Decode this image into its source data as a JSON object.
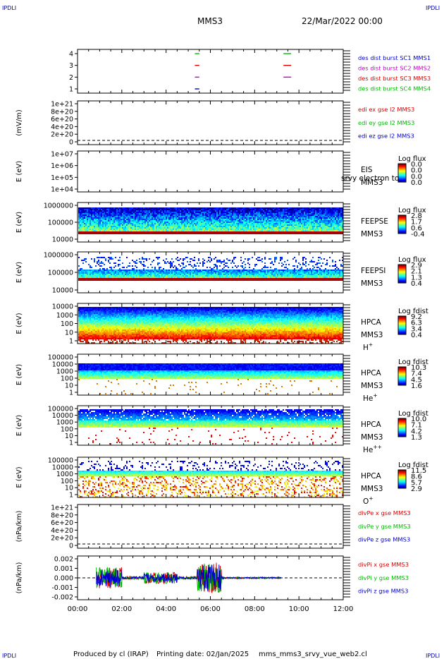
{
  "header": {
    "corner_tl": "IPDLI",
    "corner_tr": "IPDLI",
    "corner_bl": "IPDLI",
    "corner_br": "IPDLI",
    "spacecraft": "MMS3",
    "date": "22/Mar/2022 00:00"
  },
  "footer": {
    "produced": "Produced by cl (IRAP)",
    "printing": "Printing date: 02/Jan/2025",
    "file": "mms_mms3_srvy_vue_web2.cl"
  },
  "colors": {
    "mms1": "#0000cc",
    "mms2": "#cc00cc",
    "mms3": "#dd0000",
    "mms4": "#00bb00",
    "ex": "#dd0000",
    "ey": "#00bb00",
    "ez": "#0000cc"
  },
  "chart_data": {
    "type": "heatmap",
    "x_ticks": [
      "00:00",
      "02:00",
      "04:00",
      "06:00",
      "08:00",
      "10:00",
      "12:00"
    ],
    "x_range_hours": [
      0,
      12
    ],
    "panels": [
      {
        "id": "burst",
        "type": "scatter",
        "yticks": [
          "4",
          "3",
          "2",
          "1"
        ],
        "ylim": [
          0.5,
          4.5
        ],
        "legend": [
          {
            "label": "des dist burst SC1 MMS1",
            "color": "#0000cc"
          },
          {
            "label": "des dist burst SC2 MMS2",
            "color": "#cc00cc"
          },
          {
            "label": "des dist burst SC3 MMS3",
            "color": "#dd0000"
          },
          {
            "label": "des dist burst SC4 MMS4",
            "color": "#00bb00"
          }
        ],
        "segments": [
          {
            "y": 4,
            "t0": 5.3,
            "t1": 5.5,
            "color": "#00bb00"
          },
          {
            "y": 3,
            "t0": 5.3,
            "t1": 5.5,
            "color": "#dd0000"
          },
          {
            "y": 2,
            "t0": 5.3,
            "t1": 5.5,
            "color": "#cc00cc"
          },
          {
            "y": 1,
            "t0": 5.3,
            "t1": 5.5,
            "color": "#0000cc"
          },
          {
            "y": 4,
            "t0": 9.3,
            "t1": 9.65,
            "color": "#00bb00"
          },
          {
            "y": 3,
            "t0": 9.3,
            "t1": 9.65,
            "color": "#dd0000"
          },
          {
            "y": 2,
            "t0": 9.3,
            "t1": 9.65,
            "color": "#cc00cc"
          }
        ]
      },
      {
        "id": "edi",
        "type": "line",
        "ylabel": "(mV/m)",
        "yticks": [
          "1e+21",
          "8e+20",
          "6e+20",
          "4e+20",
          "2e+20",
          "0"
        ],
        "ylim": [
          0,
          1e+21
        ],
        "legend": [
          {
            "label": "edi ex gse l2 MMS3",
            "color": "#dd0000"
          },
          {
            "label": "edi ey gse l2 MMS3",
            "color": "#00bb00"
          },
          {
            "label": "edi ez gse l2 MMS3",
            "color": "#0000cc"
          }
        ]
      },
      {
        "id": "eis",
        "type": "heatmap",
        "ylabel": "E (eV)",
        "yticks": [
          "1e+07",
          "1e+06",
          "1e+05",
          "1e+04"
        ],
        "ylim": [
          10000.0,
          10000000.0
        ],
        "log": true,
        "inst": "EIS",
        "sc": "MMS3",
        "overlay": "srvy electron to",
        "cb_title": "Log flux",
        "cb_ticks": [
          "0.0",
          "0.0",
          "0.0",
          "0.0"
        ]
      },
      {
        "id": "feepse",
        "type": "heatmap",
        "ylabel": "E (eV)",
        "yticks": [
          "1000000",
          "100000",
          "10000"
        ],
        "ylim": [
          10000.0,
          1000000.0
        ],
        "log": true,
        "inst": "FEEPSE",
        "sc": "MMS3",
        "cb_title": "Log flux",
        "cb_ticks": [
          "2.8",
          "1.7",
          "0.6",
          "-0.4"
        ]
      },
      {
        "id": "feepsi",
        "type": "heatmap",
        "ylabel": "E (eV)",
        "yticks": [
          "1000000",
          "100000",
          "10000"
        ],
        "ylim": [
          10000.0,
          1000000.0
        ],
        "log": true,
        "inst": "FEEPSI",
        "sc": "MMS3",
        "cb_title": "Log flux",
        "cb_ticks": [
          "2.9",
          "2.1",
          "1.3",
          "0.4"
        ]
      },
      {
        "id": "hpca_h",
        "type": "heatmap",
        "ylabel": "E (eV)",
        "yticks": [
          "10000",
          "1000",
          "100",
          "10",
          "1"
        ],
        "ylim": [
          1,
          40000.0
        ],
        "log": true,
        "inst": "HPCA",
        "sc": "MMS3",
        "species": "H",
        "species_sup": "+",
        "cb_title": "Log fdist",
        "cb_ticks": [
          "9.2",
          "6.3",
          "3.4",
          "0.4"
        ]
      },
      {
        "id": "hpca_he",
        "type": "heatmap",
        "ylabel": "E (eV)",
        "yticks": [
          "100000",
          "10000",
          "1000",
          "100",
          "10",
          "1"
        ],
        "ylim": [
          1,
          100000.0
        ],
        "log": true,
        "inst": "HPCA",
        "sc": "MMS3",
        "species": "He",
        "species_sup": "+",
        "cb_title": "Log fdist",
        "cb_ticks": [
          "10.3",
          "7.4",
          "4.5",
          "1.6"
        ]
      },
      {
        "id": "hpca_hepp",
        "type": "heatmap",
        "ylabel": "E (eV)",
        "yticks": [
          "100000",
          "10000",
          "1000",
          "100",
          "10",
          "1"
        ],
        "ylim": [
          1,
          100000.0
        ],
        "log": true,
        "inst": "HPCA",
        "sc": "MMS3",
        "species": "He",
        "species_sup": "++",
        "cb_title": "Log fdist",
        "cb_ticks": [
          "10.0",
          "7.1",
          "4.2",
          "1.3"
        ]
      },
      {
        "id": "hpca_o",
        "type": "heatmap",
        "ylabel": "E (eV)",
        "yticks": [
          "100000",
          "10000",
          "1000",
          "100",
          "10",
          "1"
        ],
        "ylim": [
          1,
          100000.0
        ],
        "log": true,
        "inst": "HPCA",
        "sc": "MMS3",
        "species": "O",
        "species_sup": "+",
        "cb_title": "Log fdist",
        "cb_ticks": [
          "11.5",
          "8.6",
          "5.7",
          "2.9"
        ]
      },
      {
        "id": "divpe",
        "type": "line",
        "ylabel": "(nPa/km)",
        "yticks": [
          "1e+21",
          "8e+20",
          "6e+20",
          "4e+20",
          "2e+20",
          "0"
        ],
        "ylim": [
          0,
          1e+21
        ],
        "legend": [
          {
            "label": "divPe x gse MMS3",
            "color": "#dd0000"
          },
          {
            "label": "divPe y gse MMS3",
            "color": "#00bb00"
          },
          {
            "label": "divPe z gse MMS3",
            "color": "#0000cc"
          }
        ]
      },
      {
        "id": "divpi",
        "type": "line",
        "ylabel": "(nPa/km)",
        "yticks": [
          "0.002",
          "0.001",
          "0.000",
          "-0.001",
          "-0.002"
        ],
        "ylim": [
          -0.0025,
          0.0022
        ],
        "data_span_hours": [
          0.85,
          9.2
        ],
        "legend": [
          {
            "label": "divPi x gse MMS3",
            "color": "#dd0000"
          },
          {
            "label": "divPi y gse MMS3",
            "color": "#00bb00"
          },
          {
            "label": "divPi z gse MMS3",
            "color": "#0000cc"
          }
        ]
      }
    ]
  }
}
